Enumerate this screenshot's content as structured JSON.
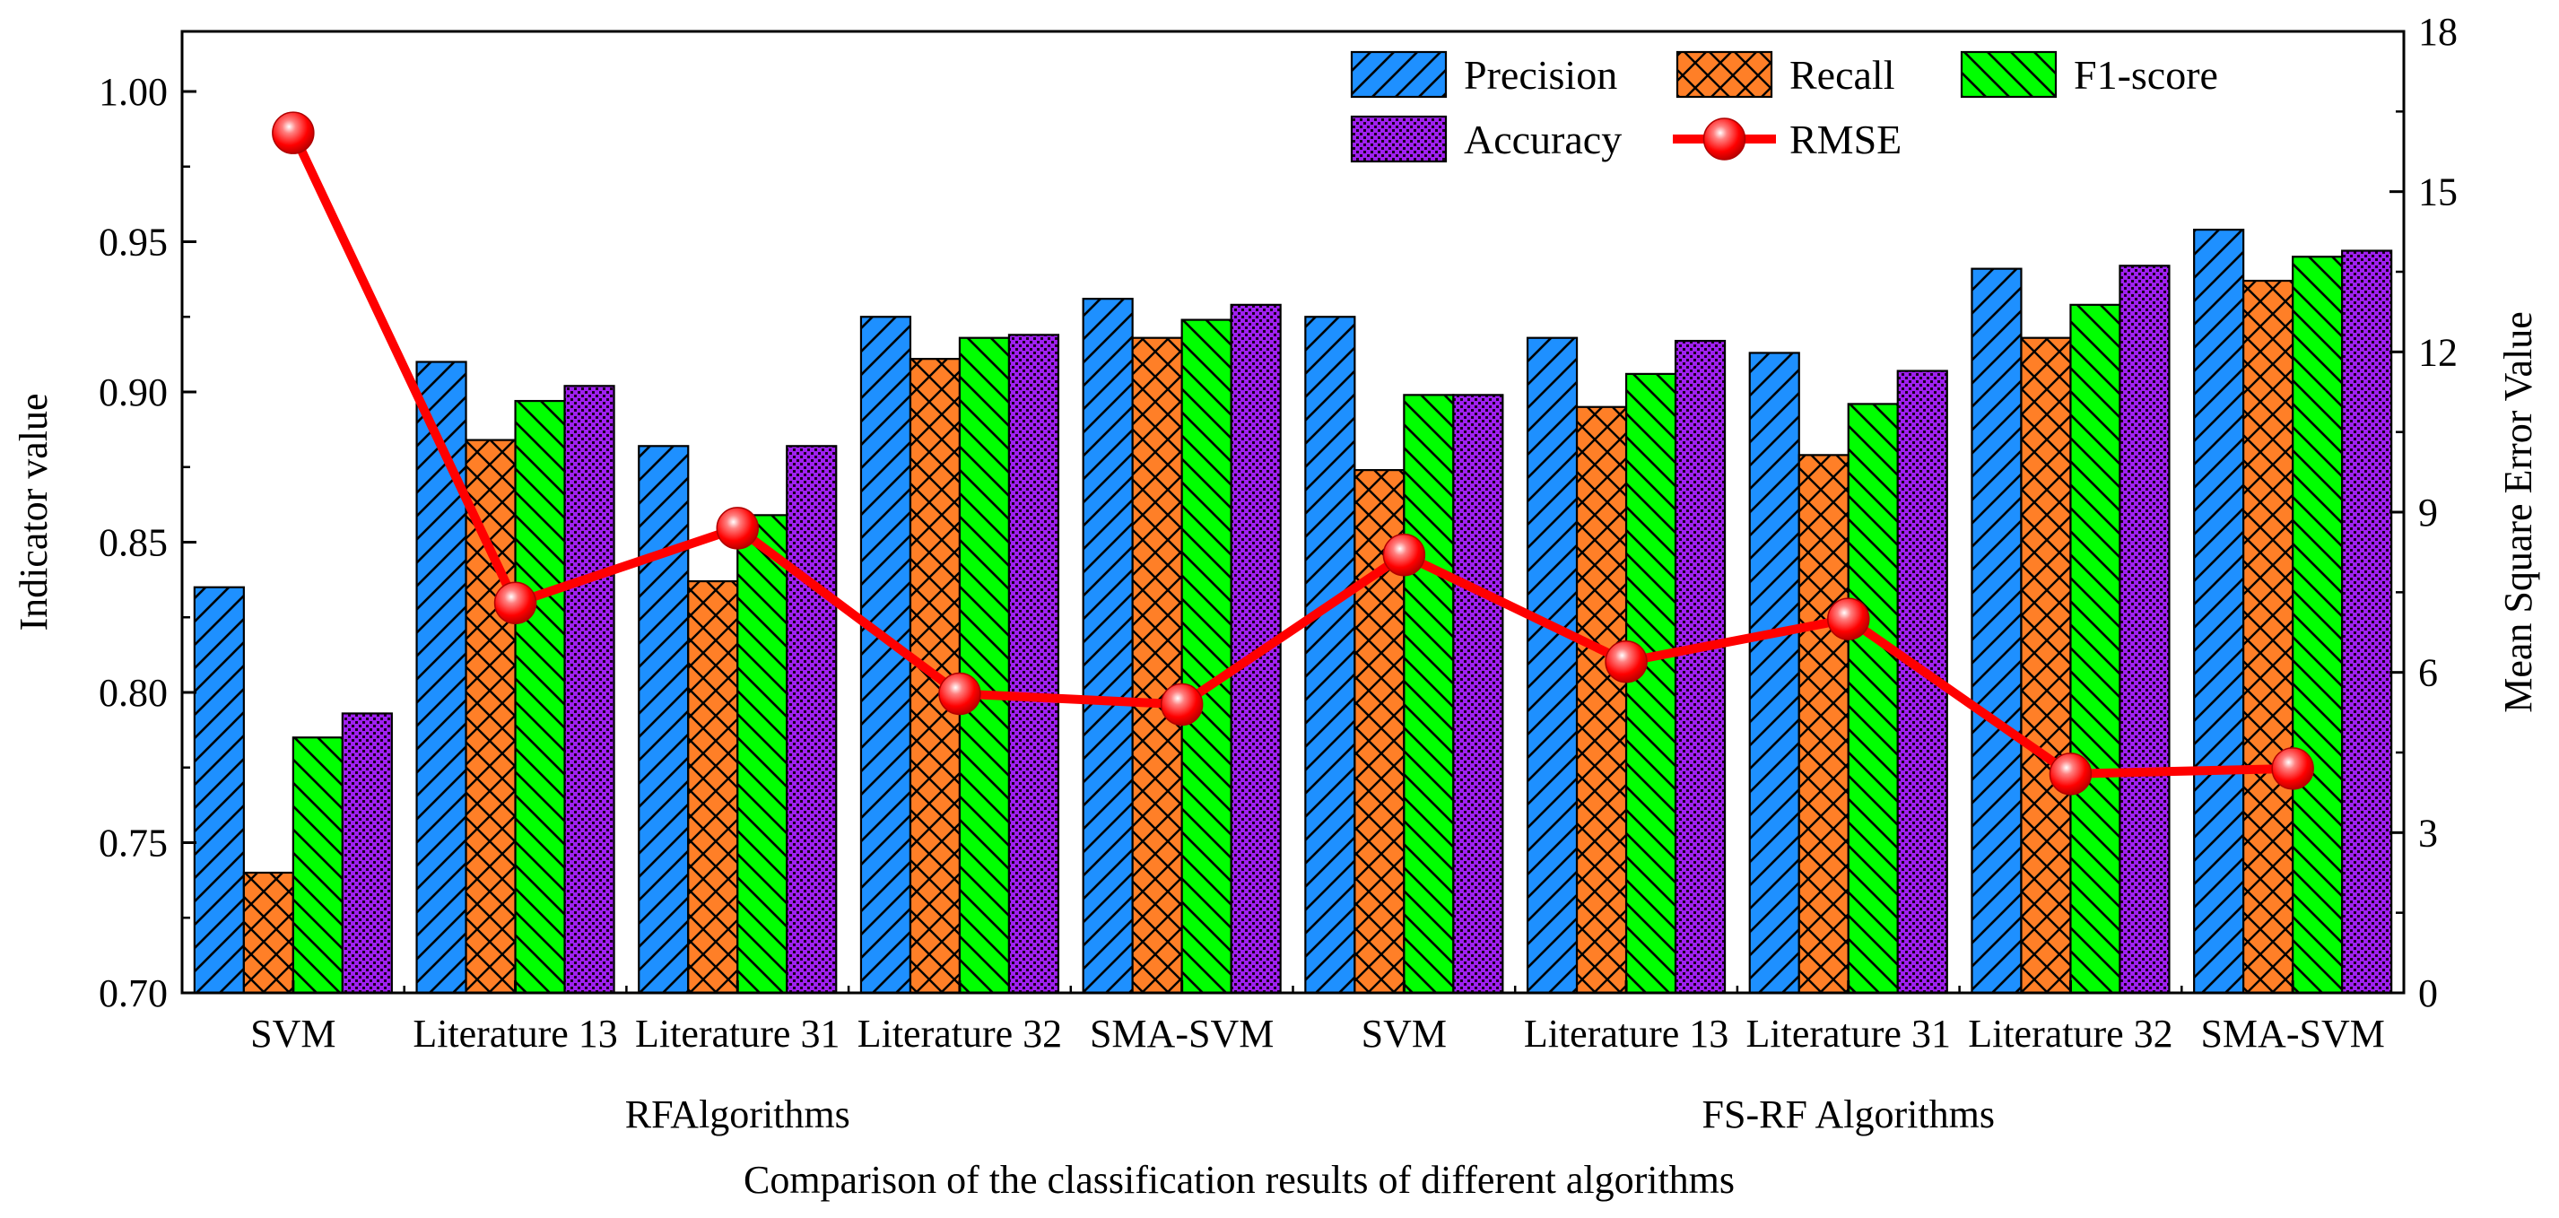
{
  "chart_data": {
    "type": "bar",
    "title": "",
    "xlabel": "Comparison of the classification results of different algorithms",
    "ylabel": "Indicator value",
    "y2label": "Mean Square Error Value",
    "ylim": [
      0.7,
      1.02
    ],
    "y2lim": [
      0,
      18
    ],
    "yticks": [
      "0.70",
      "0.75",
      "0.80",
      "0.85",
      "0.90",
      "0.95",
      "1.00"
    ],
    "y2ticks": [
      "0",
      "3",
      "6",
      "9",
      "12",
      "15",
      "18"
    ],
    "grid": false,
    "legend_position": "top-right",
    "categories": [
      "SVM",
      "Literature 13",
      "Literature 31",
      "Literature 32",
      "SMA-SVM",
      "SVM",
      "Literature 13",
      "Literature 31",
      "Literature 32",
      "SMA-SVM"
    ],
    "groups": [
      {
        "label": "RFAlgorithms",
        "categories": [
          0,
          1,
          2,
          3,
          4
        ]
      },
      {
        "label": "FS-RF Algorithms",
        "categories": [
          5,
          6,
          7,
          8,
          9
        ]
      }
    ],
    "series": [
      {
        "name": "Precision",
        "kind": "bar",
        "color": "#1E90FF",
        "pattern": "diagonal-forward",
        "values": [
          0.835,
          0.91,
          0.882,
          0.925,
          0.931,
          0.925,
          0.918,
          0.913,
          0.941,
          0.954
        ]
      },
      {
        "name": "Recall",
        "kind": "bar",
        "color": "#FF7F27",
        "pattern": "crosshatch",
        "values": [
          0.74,
          0.884,
          0.837,
          0.911,
          0.918,
          0.874,
          0.895,
          0.879,
          0.918,
          0.937
        ]
      },
      {
        "name": "F1-score",
        "kind": "bar",
        "color": "#00FF00",
        "pattern": "diagonal-backward",
        "values": [
          0.785,
          0.897,
          0.859,
          0.918,
          0.924,
          0.899,
          0.906,
          0.896,
          0.929,
          0.945
        ]
      },
      {
        "name": "Accuracy",
        "kind": "bar",
        "color": "#A020F0",
        "pattern": "dots",
        "values": [
          0.793,
          0.902,
          0.882,
          0.919,
          0.929,
          0.899,
          0.917,
          0.907,
          0.942,
          0.947
        ]
      },
      {
        "name": "RMSE",
        "kind": "line",
        "axis": "right",
        "color": "#FF0000",
        "values": [
          16.1,
          7.3,
          8.7,
          5.6,
          5.4,
          8.2,
          6.2,
          7.0,
          4.1,
          4.2
        ]
      }
    ]
  }
}
